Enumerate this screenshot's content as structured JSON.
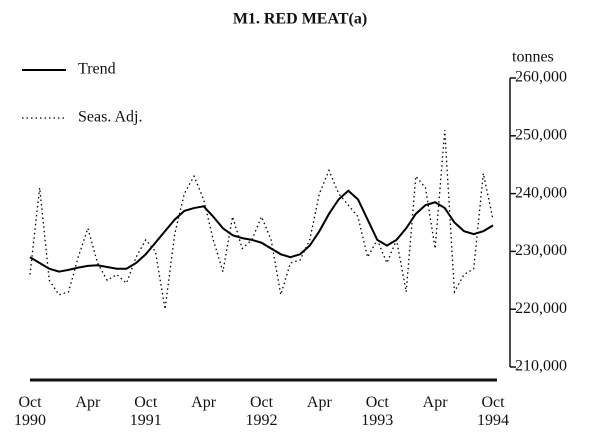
{
  "chart_data": {
    "type": "line",
    "title": "M1. RED MEAT(a)",
    "y_label": "tonnes",
    "categories": [
      "Oct 1990",
      null,
      null,
      null,
      null,
      null,
      "Apr",
      null,
      null,
      null,
      null,
      null,
      "Oct 1991",
      null,
      null,
      null,
      null,
      null,
      "Apr",
      null,
      null,
      null,
      null,
      null,
      "Oct 1992",
      null,
      null,
      null,
      null,
      null,
      "Apr",
      null,
      null,
      null,
      null,
      null,
      "Oct 1993",
      null,
      null,
      null,
      null,
      null,
      "Apr",
      null,
      null,
      null,
      null,
      null,
      "Oct 1994"
    ],
    "series": [
      {
        "name": "Trend",
        "color": "#000000",
        "dash": "solid",
        "values": [
          229000,
          228000,
          227000,
          226500,
          226800,
          227200,
          227500,
          227600,
          227300,
          227000,
          227000,
          228000,
          229500,
          231500,
          233500,
          235500,
          237000,
          237500,
          237800,
          236000,
          234000,
          232800,
          232300,
          232000,
          231500,
          230500,
          229500,
          229000,
          229500,
          231000,
          233500,
          236500,
          239000,
          240500,
          239000,
          235500,
          232000,
          231000,
          232000,
          234000,
          236500,
          238000,
          238500,
          237500,
          235000,
          233500,
          233000,
          233500,
          234500
        ]
      },
      {
        "name": "Seas. Adj.",
        "color": "#000000",
        "dash": "dotted",
        "values": [
          226000,
          241000,
          225000,
          222500,
          223000,
          229000,
          234000,
          228000,
          225000,
          226000,
          224500,
          229000,
          232000,
          230000,
          220000,
          233000,
          240000,
          243000,
          239000,
          232000,
          226500,
          236000,
          230500,
          232000,
          236000,
          232000,
          222500,
          228000,
          228500,
          232000,
          240000,
          244000,
          240000,
          238000,
          236000,
          229000,
          232000,
          228000,
          232000,
          223000,
          243000,
          241000,
          230500,
          251000,
          223000,
          226000,
          227000,
          243500,
          235500
        ]
      }
    ],
    "ylim": [
      210000,
      260000
    ],
    "yticks": [
      {
        "value": 210000,
        "label": "210,000"
      },
      {
        "value": 220000,
        "label": "220,000"
      },
      {
        "value": 230000,
        "label": "230,000"
      },
      {
        "value": 240000,
        "label": "240,000"
      },
      {
        "value": 250000,
        "label": "250,000"
      },
      {
        "value": 260000,
        "label": "260,000"
      }
    ],
    "y_axis_side": "right",
    "legend": "upper left",
    "grid": false
  }
}
